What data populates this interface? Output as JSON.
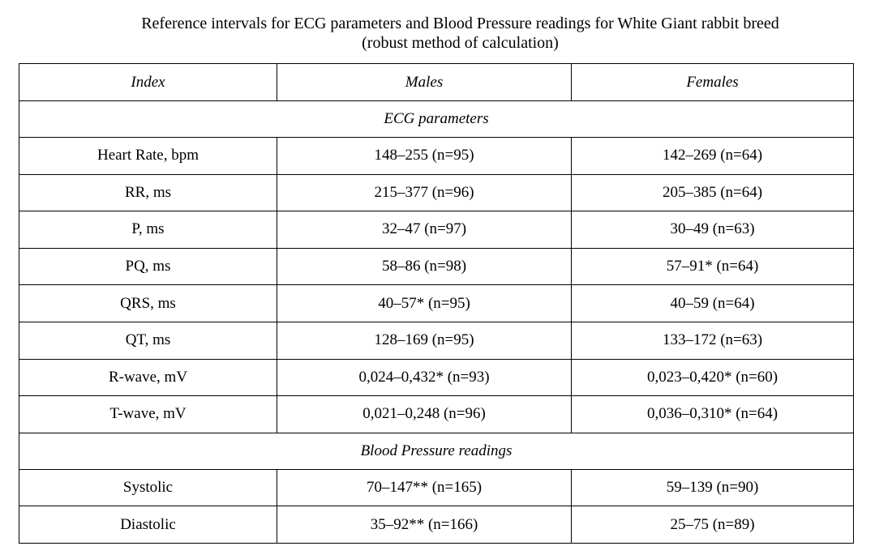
{
  "title": {
    "line1": "Reference intervals for ECG parameters and Blood Pressure readings for White Giant rabbit breed",
    "line2": "(robust method of calculation)"
  },
  "table": {
    "headers": [
      "Index",
      "Males",
      "Females"
    ],
    "sections": [
      {
        "name": "ECG parameters",
        "rows": [
          {
            "index": "Heart Rate, bpm",
            "males": "148–255 (n=95)",
            "females": "142–269 (n=64)"
          },
          {
            "index": "RR, ms",
            "males": "215–377 (n=96)",
            "females": "205–385 (n=64)"
          },
          {
            "index": "P, ms",
            "males": "32–47 (n=97)",
            "females": "30–49 (n=63)"
          },
          {
            "index": "PQ, ms",
            "males": "58–86 (n=98)",
            "females": "57–91* (n=64)"
          },
          {
            "index": "QRS, ms",
            "males": "40–57* (n=95)",
            "females": "40–59 (n=64)"
          },
          {
            "index": "QT, ms",
            "males": "128–169 (n=95)",
            "females": "133–172 (n=63)"
          },
          {
            "index": "R-wave, mV",
            "males": "0,024–0,432* (n=93)",
            "females": "0,023–0,420* (n=60)"
          },
          {
            "index": "T-wave, mV",
            "males": "0,021–0,248 (n=96)",
            "females": "0,036–0,310* (n=64)"
          }
        ]
      },
      {
        "name": "Blood Pressure readings",
        "rows": [
          {
            "index": "Systolic",
            "males": "70–147** (n=165)",
            "females": "59–139 (n=90)"
          },
          {
            "index": "Diastolic",
            "males": "35–92** (n=166)",
            "females": "25–75 (n=89)"
          }
        ]
      }
    ]
  }
}
